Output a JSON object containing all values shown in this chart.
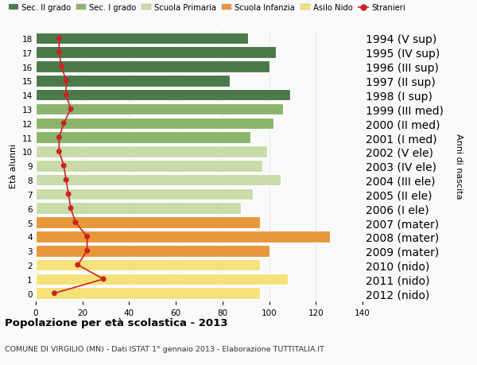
{
  "ages": [
    0,
    1,
    2,
    3,
    4,
    5,
    6,
    7,
    8,
    9,
    10,
    11,
    12,
    13,
    14,
    15,
    16,
    17,
    18
  ],
  "years": [
    "2012 (nido)",
    "2011 (nido)",
    "2010 (nido)",
    "2009 (mater)",
    "2008 (mater)",
    "2007 (mater)",
    "2006 (I ele)",
    "2005 (II ele)",
    "2004 (III ele)",
    "2003 (IV ele)",
    "2002 (V ele)",
    "2001 (I med)",
    "2000 (II med)",
    "1999 (III med)",
    "1998 (I sup)",
    "1997 (II sup)",
    "1996 (III sup)",
    "1995 (IV sup)",
    "1994 (V sup)"
  ],
  "bar_values": [
    96,
    108,
    96,
    100,
    126,
    96,
    88,
    93,
    105,
    97,
    99,
    92,
    102,
    106,
    109,
    83,
    100,
    103,
    91
  ],
  "stranieri": [
    8,
    29,
    18,
    22,
    22,
    17,
    15,
    14,
    13,
    12,
    10,
    10,
    12,
    15,
    13,
    13,
    11,
    10,
    10
  ],
  "bar_colors": {
    "0": "#f5e17a",
    "1": "#f5e17a",
    "2": "#f5e17a",
    "3": "#e8973a",
    "4": "#e8973a",
    "5": "#e8973a",
    "6": "#c8dba8",
    "7": "#c8dba8",
    "8": "#c8dba8",
    "9": "#c8dba8",
    "10": "#c8dba8",
    "11": "#8ab56a",
    "12": "#8ab56a",
    "13": "#8ab56a",
    "14": "#4a7a4a",
    "15": "#4a7a4a",
    "16": "#4a7a4a",
    "17": "#4a7a4a",
    "18": "#4a7a4a"
  },
  "legend_labels": [
    "Sec. II grado",
    "Sec. I grado",
    "Scuola Primaria",
    "Scuola Infanzia",
    "Asilo Nido",
    "Stranieri"
  ],
  "legend_colors": [
    "#4a7a4a",
    "#8ab56a",
    "#c8dba8",
    "#e8973a",
    "#f5e17a",
    "#cc2222"
  ],
  "ylabel_left": "Età alunni",
  "ylabel_right": "Anni di nascita",
  "title": "Popolazione per età scolastica - 2013",
  "subtitle": "COMUNE DI VIRGILIO (MN) - Dati ISTAT 1° gennaio 2013 - Elaborazione TUTTITALIA.IT",
  "xlim": [
    0,
    140
  ],
  "xticks": [
    0,
    20,
    40,
    60,
    80,
    100,
    120,
    140
  ],
  "background_color": "#f9f9f9",
  "stranieri_color": "#cc2222"
}
